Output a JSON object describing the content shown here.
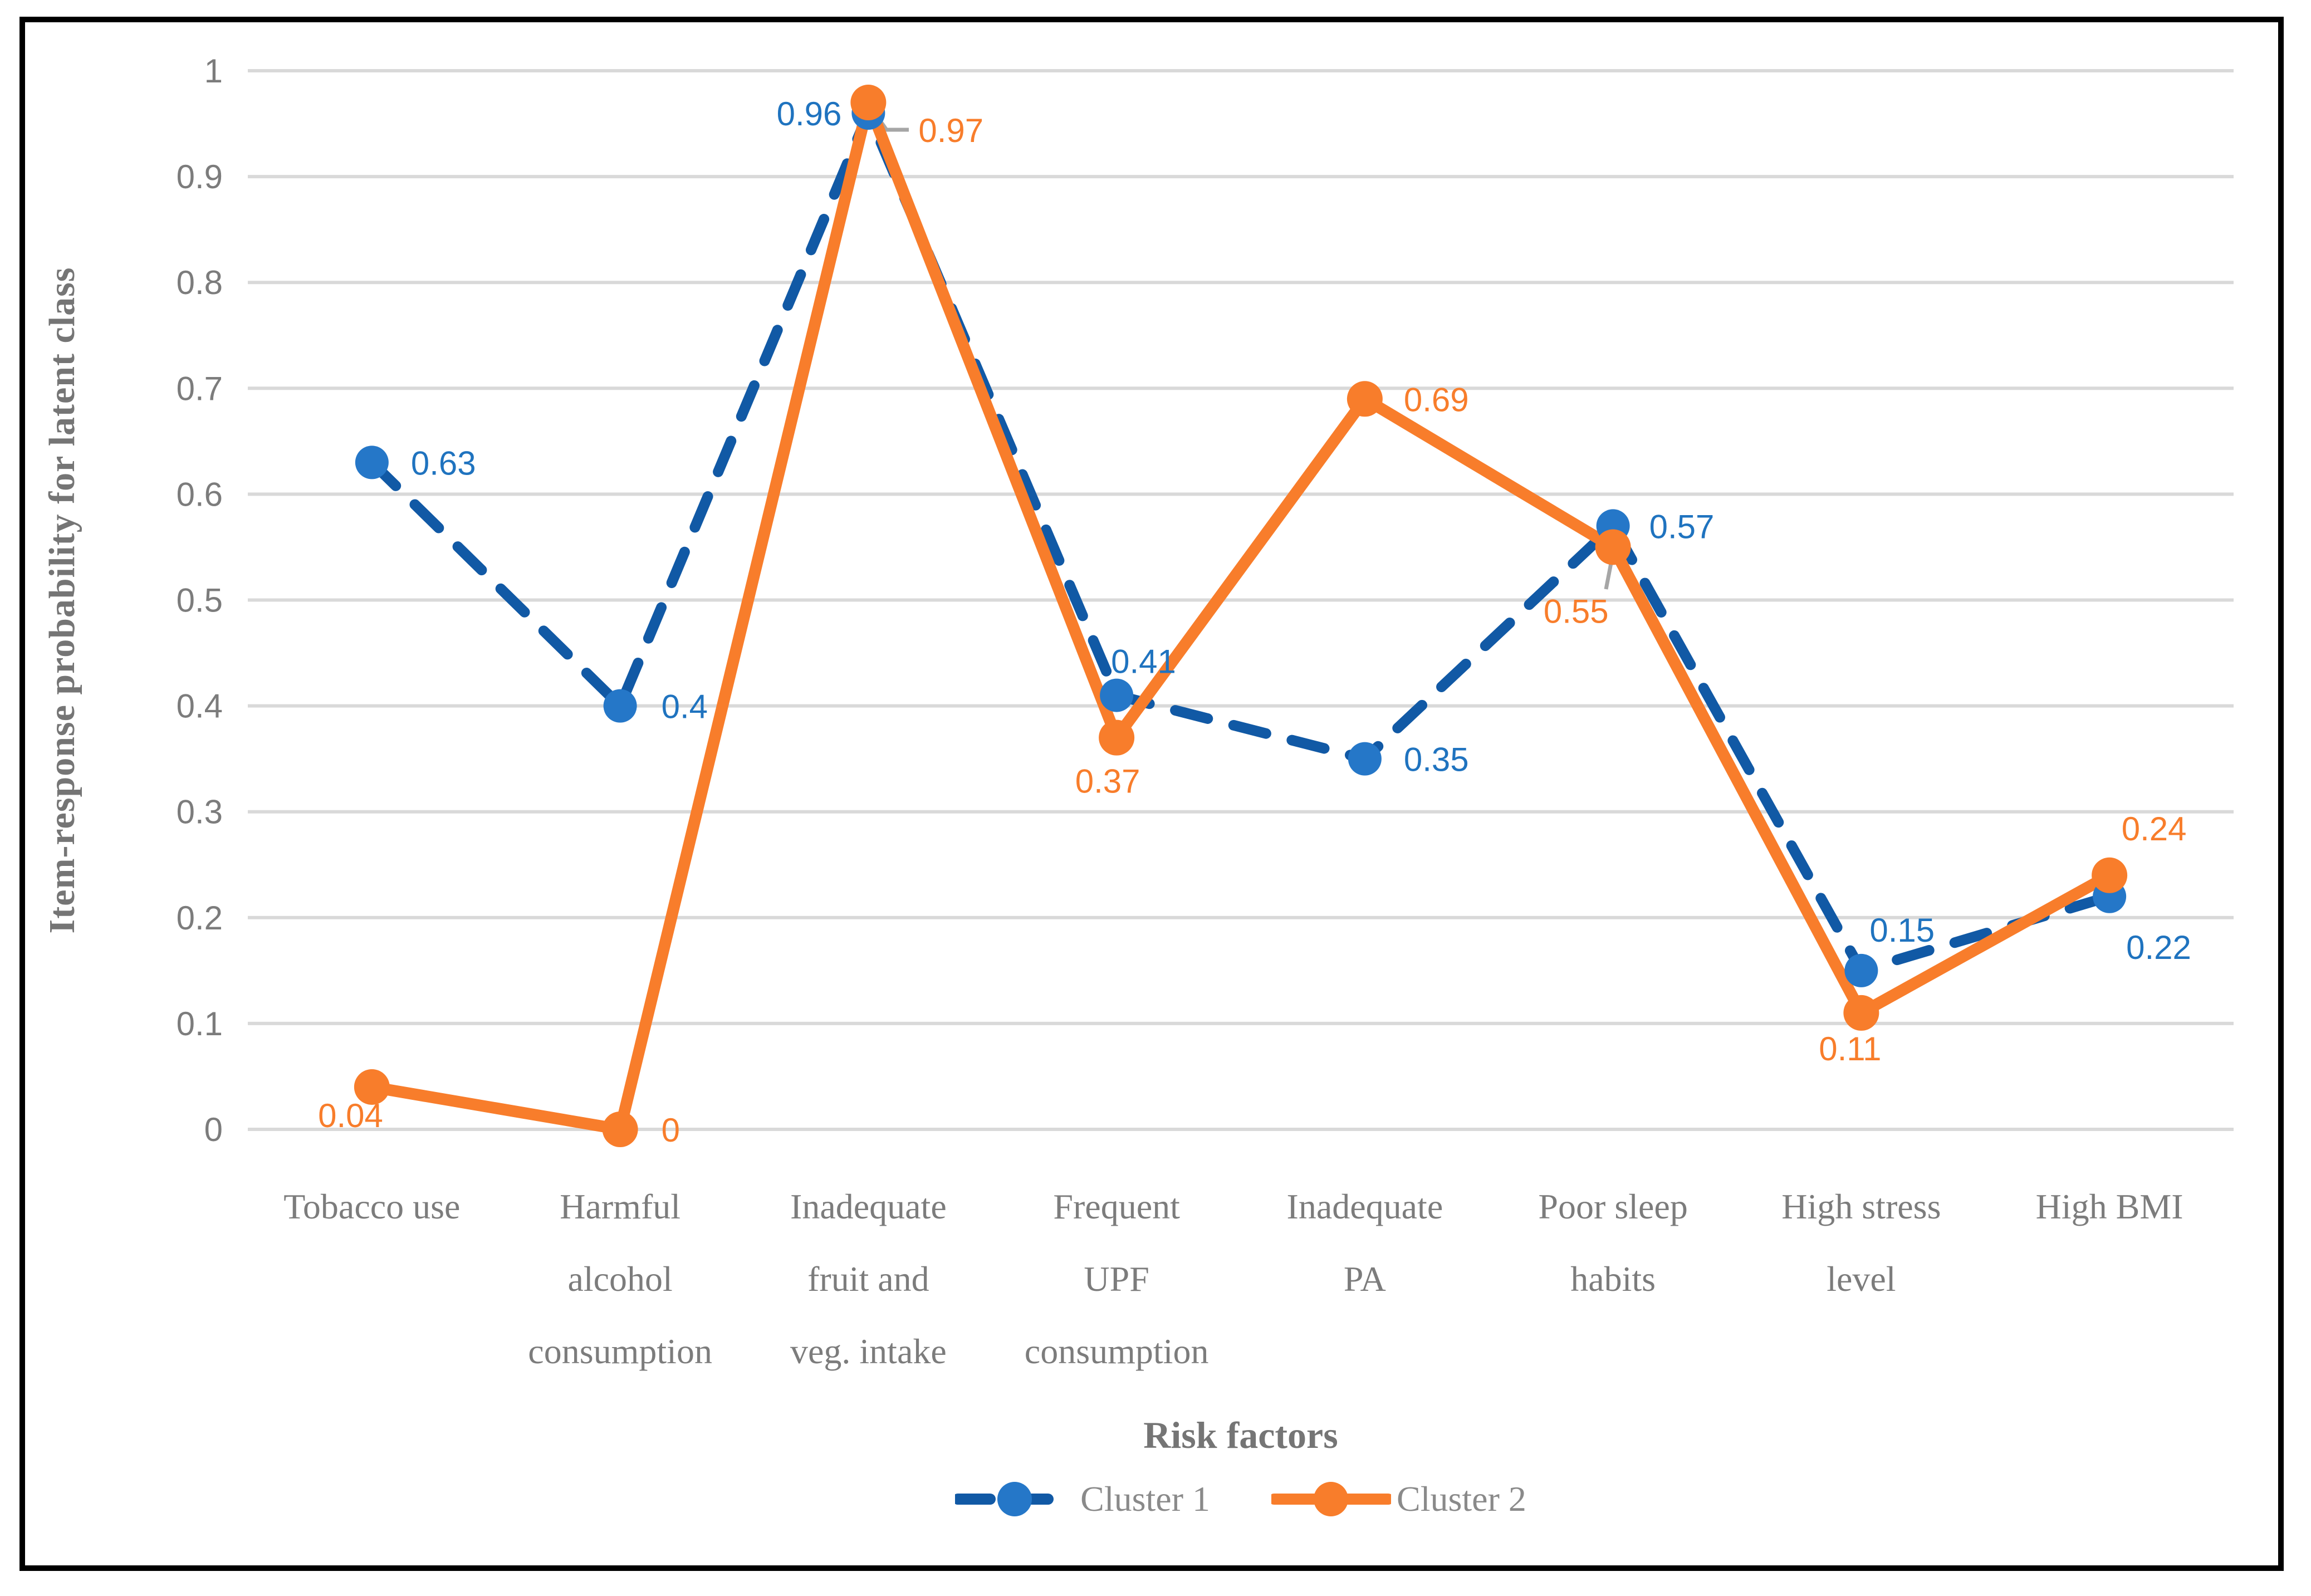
{
  "chart_data": {
    "type": "line",
    "title": "",
    "xlabel": "Risk factors",
    "ylabel": "Item-response probability for latent class",
    "categories": [
      "Tobacco use",
      "Harmful alcohol consumption",
      "Inadequate fruit and veg. intake",
      "Frequent UPF consumption",
      "Inadequate PA",
      "Poor sleep habits",
      "High stress level",
      "High BMI"
    ],
    "category_label_lines": [
      [
        "Tobacco use"
      ],
      [
        "Harmful",
        "alcohol",
        "consumption"
      ],
      [
        "Inadequate",
        "fruit and",
        "veg. intake"
      ],
      [
        "Frequent",
        "UPF",
        "consumption"
      ],
      [
        "Inadequate",
        "PA"
      ],
      [
        "Poor sleep",
        "habits"
      ],
      [
        "High stress",
        "level"
      ],
      [
        "High BMI"
      ]
    ],
    "series": [
      {
        "name": "Cluster 1",
        "values": [
          0.63,
          0.4,
          0.96,
          0.41,
          0.35,
          0.57,
          0.15,
          0.22
        ],
        "data_labels": [
          "0.63",
          "0.4",
          "0.96",
          "0.41",
          "0.35",
          "0.57",
          "0.15",
          "0.22"
        ],
        "line_style": "dashed",
        "line_color": "#1159A5",
        "marker_color": "#2577C8",
        "label_color": "#1F73BF"
      },
      {
        "name": "Cluster 2",
        "values": [
          0.04,
          0,
          0.97,
          0.37,
          0.69,
          0.55,
          0.11,
          0.24
        ],
        "data_labels": [
          "0.04",
          "0",
          "0.97",
          "0.37",
          "0.69",
          "0.55",
          "0.11",
          "0.24"
        ],
        "line_style": "solid",
        "line_color": "#F87D2B",
        "marker_color": "#F87D2B",
        "label_color": "#F87D2B"
      }
    ],
    "ylim": [
      0,
      1
    ],
    "ytick_values": [
      0,
      0.1,
      0.2,
      0.3,
      0.4,
      0.5,
      0.6,
      0.7,
      0.8,
      0.9,
      1
    ],
    "ytick_labels": [
      "0",
      "0.1",
      "0.2",
      "0.3",
      "0.4",
      "0.5",
      "0.6",
      "0.7",
      "0.8",
      "0.9",
      "1"
    ],
    "grid": true,
    "legend_position": "bottom"
  },
  "colors": {
    "gridline": "#D9D9D9",
    "axis_text": "#7c7c7c",
    "title_text": "#757575",
    "legend_text": "#8a8a8a",
    "leader_line": "#A6A6A6",
    "frame_border": "#000000",
    "background": "#FFFFFF"
  }
}
